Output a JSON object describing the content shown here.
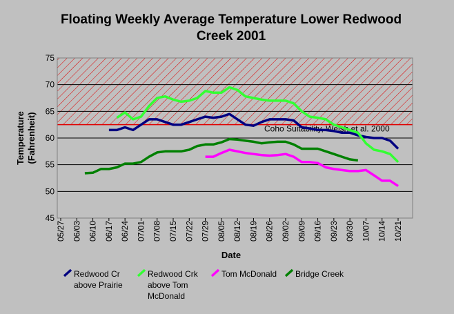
{
  "chart_data": {
    "type": "line",
    "title": "Floating Weekly Average Temperature Lower Redwood Creek 2001",
    "x_label": "Date",
    "y_label": "Temperature (Fahrenheit)",
    "categories": [
      "05/27",
      null,
      "06/03",
      null,
      "06/10",
      null,
      "06/17",
      null,
      "06/24",
      null,
      "07/01",
      null,
      "07/08",
      null,
      "07/15",
      null,
      "07/22",
      null,
      "07/29",
      null,
      "08/05",
      null,
      "08/12",
      null,
      "08/19",
      null,
      "08/26",
      null,
      "09/02",
      null,
      "09/09",
      null,
      "09/16",
      null,
      "09/23",
      null,
      "09/30",
      null,
      "10/07",
      null,
      "10/14",
      null,
      "10/21"
    ],
    "ylim": [
      45,
      75
    ],
    "yticks": [
      45,
      50,
      55,
      60,
      65,
      70,
      75
    ],
    "grid": true,
    "threshold": {
      "value": 62.5,
      "color": "#e00000",
      "label": "Coho Suitability, Welsh et al. 2000"
    },
    "series": [
      {
        "name": "Redwood Cr above Prairie",
        "color": "#000080",
        "values": [
          null,
          null,
          null,
          null,
          null,
          null,
          61.5,
          61.5,
          62,
          61.5,
          62.5,
          63.5,
          63.5,
          63,
          62.5,
          62.5,
          63,
          63.5,
          64,
          63.8,
          64,
          64.5,
          63.5,
          62.5,
          62.3,
          63,
          63.5,
          63.5,
          63.5,
          63.3,
          62,
          61.8,
          61.5,
          61.5,
          61.3,
          61,
          61,
          60.5,
          60.2,
          60,
          60,
          59.5,
          58
        ]
      },
      {
        "name": "Redwood Crk above Tom McDonald",
        "color": "#33ff33",
        "values": [
          null,
          null,
          null,
          null,
          null,
          null,
          null,
          63.8,
          64.8,
          63.5,
          64,
          66,
          67.5,
          67.8,
          67.2,
          66.8,
          67,
          67.5,
          68.8,
          68.5,
          68.5,
          69.5,
          69,
          67.8,
          67.5,
          67.2,
          67,
          67,
          67,
          66.5,
          65,
          64,
          63.8,
          63.5,
          62.5,
          62,
          61.5,
          61,
          59,
          57.8,
          57.5,
          57,
          55.5
        ]
      },
      {
        "name": "Tom McDonald",
        "color": "#ff00ff",
        "values": [
          null,
          null,
          null,
          null,
          null,
          null,
          null,
          null,
          null,
          null,
          null,
          null,
          null,
          null,
          null,
          null,
          null,
          null,
          56.5,
          56.5,
          57.2,
          57.8,
          57.5,
          57.2,
          57,
          56.8,
          56.7,
          56.8,
          57,
          56.5,
          55.5,
          55.5,
          55.3,
          54.5,
          54.2,
          54,
          53.8,
          53.8,
          54,
          53,
          52,
          52,
          51
        ]
      },
      {
        "name": "Bridge Creek",
        "color": "#008000",
        "values": [
          null,
          null,
          null,
          53.4,
          53.5,
          54.2,
          54.2,
          54.5,
          55.2,
          55.2,
          55.5,
          56.5,
          57.3,
          57.5,
          57.5,
          57.5,
          57.8,
          58.5,
          58.8,
          58.8,
          59.2,
          59.8,
          59.7,
          59.5,
          59.3,
          59,
          59.2,
          59.3,
          59.3,
          58.8,
          58,
          58,
          58,
          57.5,
          57,
          56.5,
          56,
          55.8,
          null,
          null,
          null,
          null,
          null
        ]
      }
    ]
  }
}
